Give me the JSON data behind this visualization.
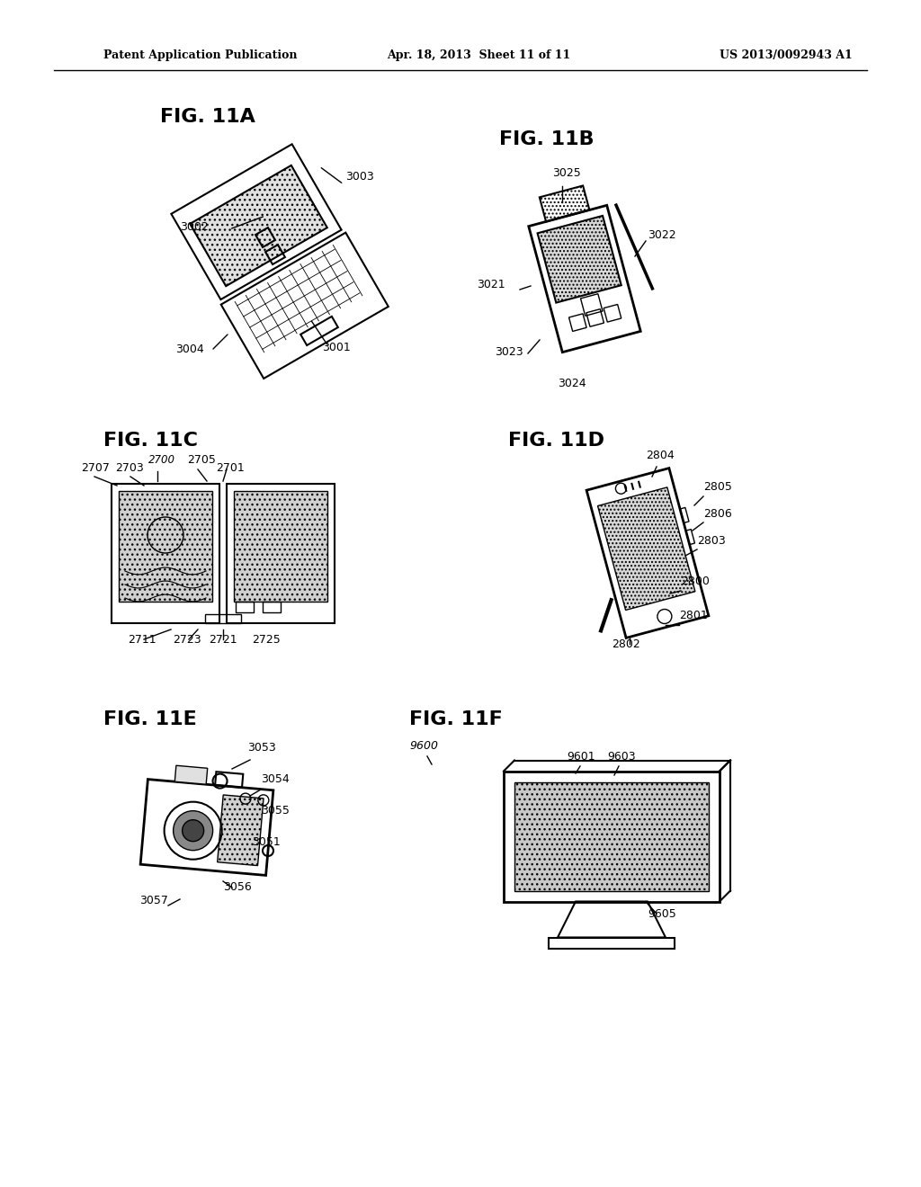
{
  "bg_color": "#ffffff",
  "header_left": "Patent Application Publication",
  "header_center": "Apr. 18, 2013  Sheet 11 of 11",
  "header_right": "US 2013/0092943 A1",
  "figures": [
    {
      "label": "FIG. 11A",
      "col": 0,
      "row": 0
    },
    {
      "label": "FIG. 11B",
      "col": 1,
      "row": 0
    },
    {
      "label": "FIG. 11C",
      "col": 0,
      "row": 1
    },
    {
      "label": "FIG. 11D",
      "col": 1,
      "row": 1
    },
    {
      "label": "FIG. 11E",
      "col": 0,
      "row": 2
    },
    {
      "label": "FIG. 11F",
      "col": 1,
      "row": 2
    }
  ],
  "fig11A_refs": [
    "3001",
    "3002",
    "3003",
    "3004"
  ],
  "fig11B_refs": [
    "3021",
    "3022",
    "3023",
    "3024",
    "3025"
  ],
  "fig11C_refs": [
    "2700",
    "2701",
    "2703",
    "2705",
    "2707",
    "2711",
    "2721",
    "2723",
    "2725"
  ],
  "fig11D_refs": [
    "2800",
    "2801",
    "2802",
    "2803",
    "2804",
    "2805",
    "2806"
  ],
  "fig11E_refs": [
    "3051",
    "3053",
    "3054",
    "3055",
    "3056",
    "3057"
  ],
  "fig11F_refs": [
    "9600",
    "9601",
    "9603",
    "9605"
  ]
}
